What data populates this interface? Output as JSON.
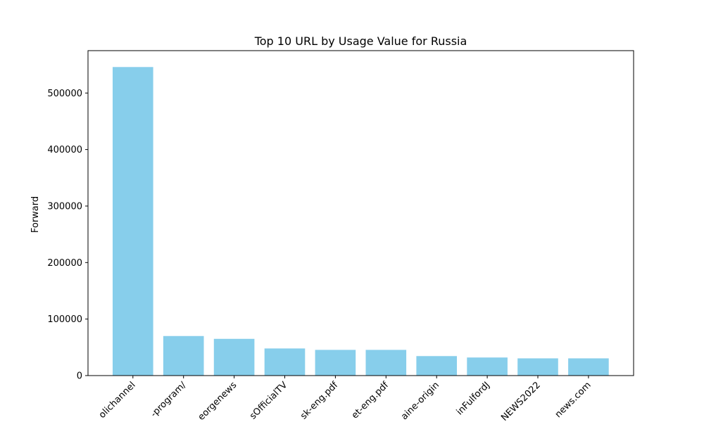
{
  "chart_data": {
    "type": "bar",
    "title": "Top 10 URL by Usage Value for Russia",
    "xlabel": "",
    "ylabel": "Forward",
    "categories": [
      "olichannel",
      "-program/",
      "eorgenews",
      "sOfficialTV",
      "sk-eng.pdf",
      "et-eng.pdf",
      "aine-origin",
      "inFulfordJ",
      "NEWS2022",
      "news.com"
    ],
    "values": [
      546000,
      70000,
      65000,
      48000,
      45500,
      45500,
      34500,
      32000,
      30500,
      30500
    ],
    "ylim": [
      0,
      575000
    ],
    "yticks": [
      0,
      100000,
      200000,
      300000,
      400000,
      500000
    ],
    "ytick_labels": [
      "0",
      "100000",
      "200000",
      "300000",
      "400000",
      "500000"
    ],
    "bar_color": "#87ceeb",
    "grid": false,
    "legend": "none"
  }
}
